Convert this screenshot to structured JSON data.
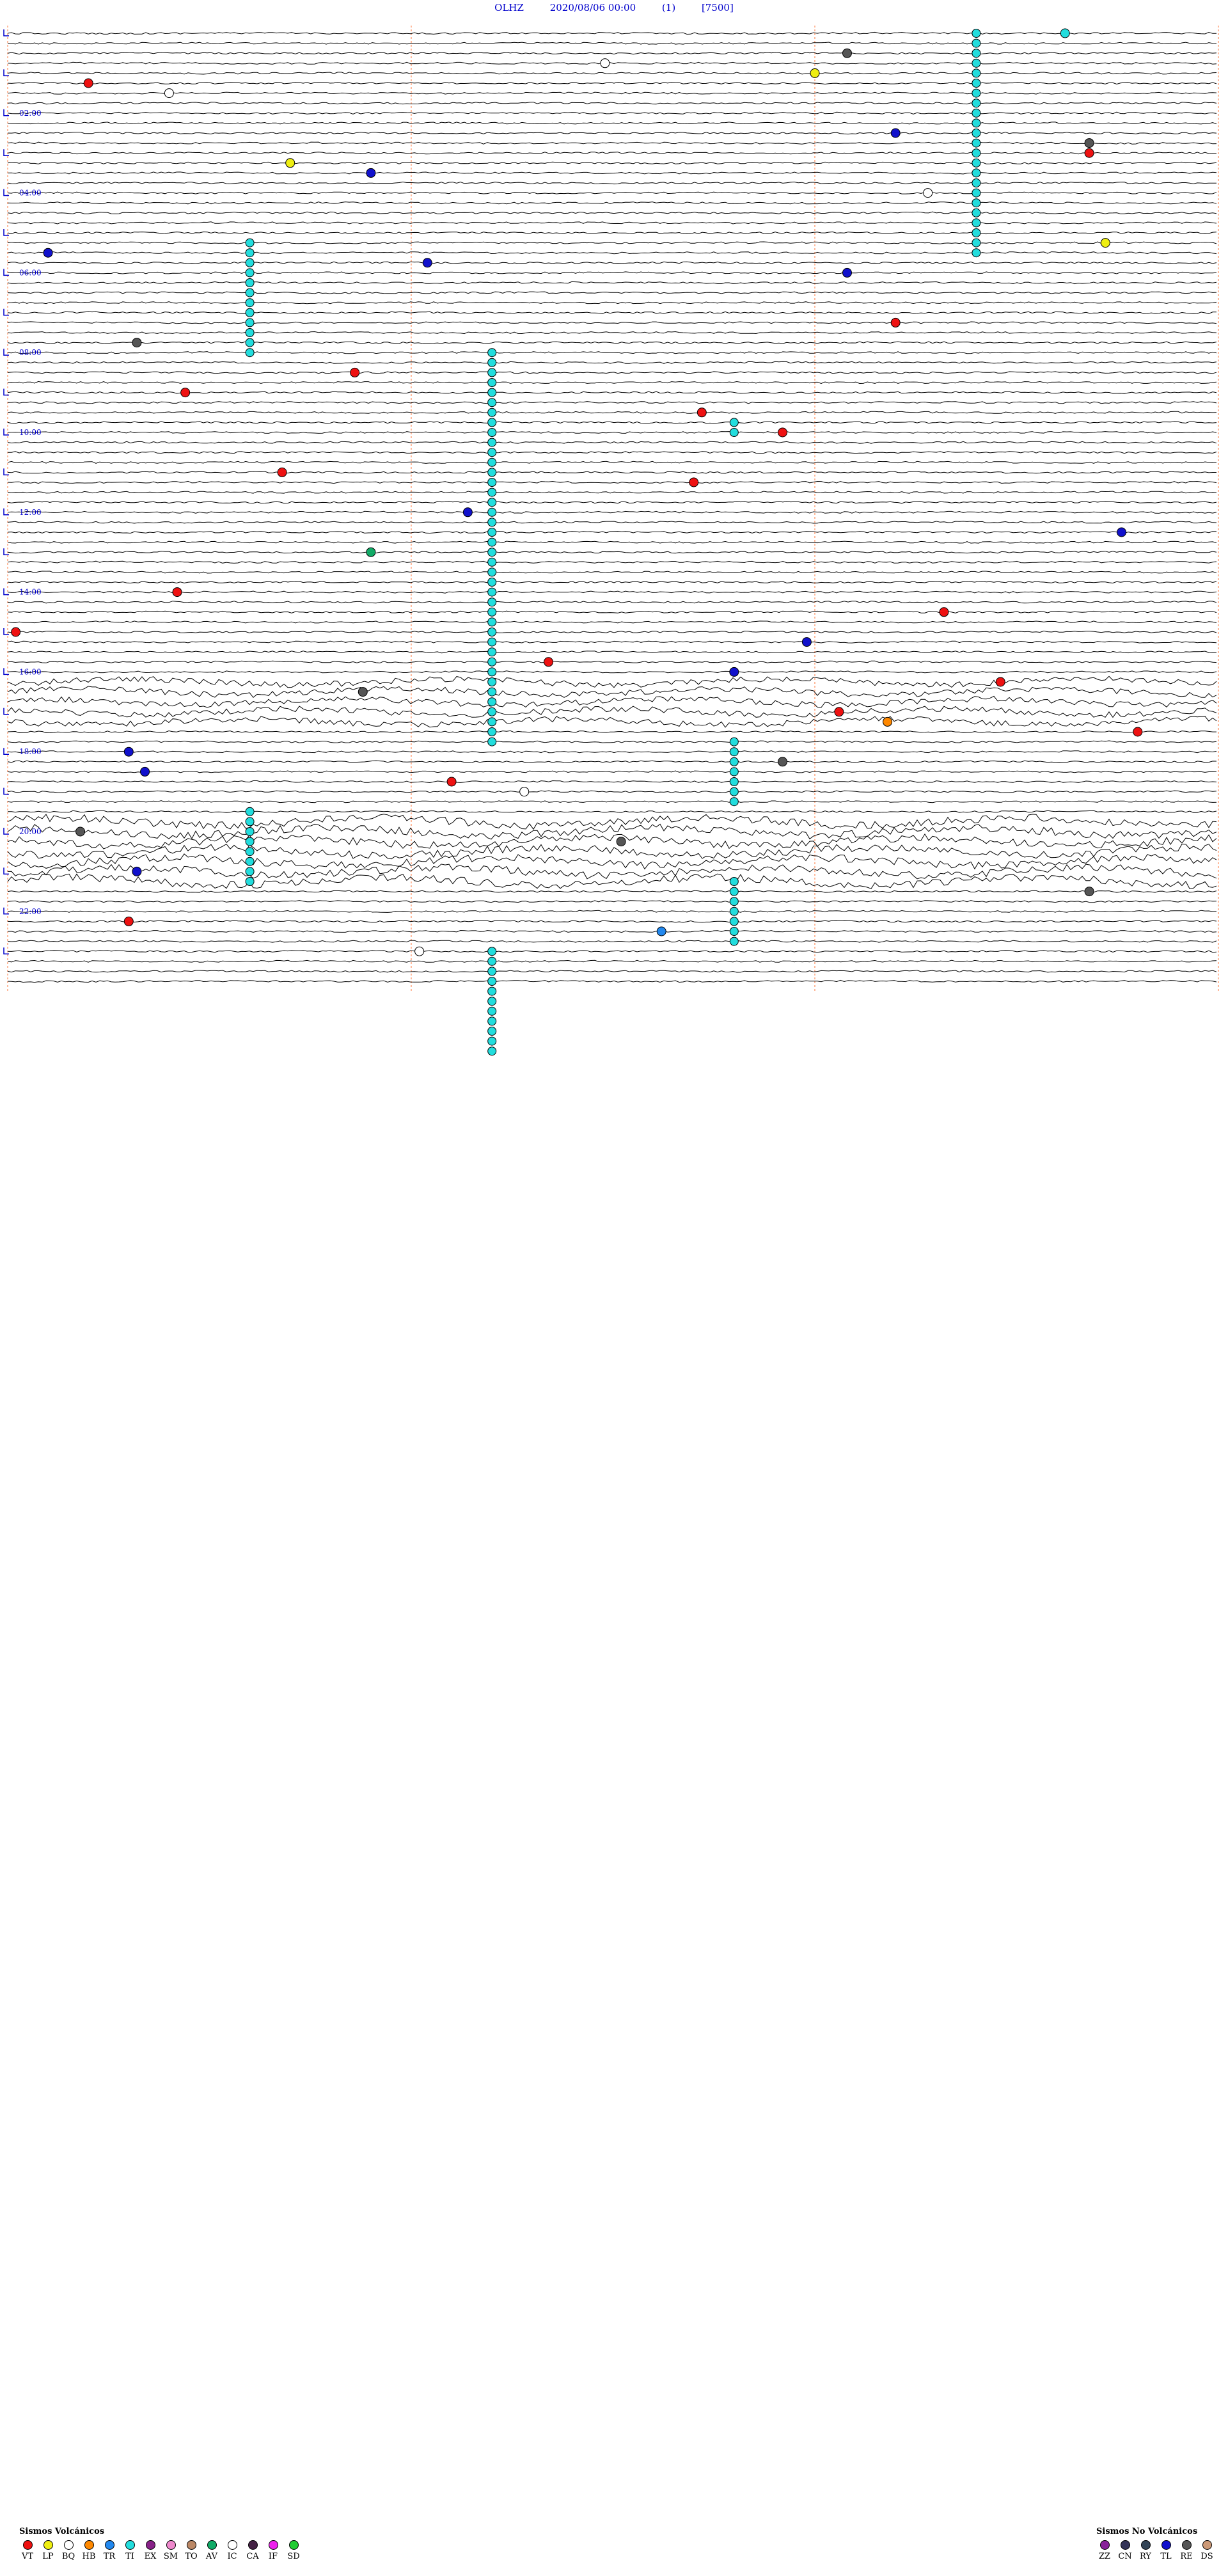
{
  "header": {
    "station": "OLHZ",
    "datetime": "2020/08/06 00:00",
    "page": "(1)",
    "scale": "[7500]"
  },
  "colors": {
    "trace": "#000000",
    "hour_mark": "#0000cc",
    "minute_grid": "#ff8c5a",
    "VT": "#ee1111",
    "LP": "#eeee11",
    "BQ": "#ffffff",
    "HB": "#ff8800",
    "TR": "#2288ee",
    "TI": "#22dddd",
    "EX": "#882288",
    "SM": "#ee88cc",
    "TO": "#bb8866",
    "AV": "#11aa66",
    "IC": "#ffffff",
    "CA": "#442244",
    "IF": "#ee22ee",
    "SD": "#22cc33",
    "ZZ": "#882299",
    "CN": "#333355",
    "RY": "#334455",
    "TL": "#1111cc",
    "RE": "#555555",
    "DS": "#cc9977"
  },
  "chart_data": {
    "type": "helicorder",
    "traces_per_hour": 4,
    "minutes_per_trace": 15,
    "hour_labels": [
      "02:00",
      "04:00",
      "06:00",
      "08:00",
      "10:00",
      "12:00",
      "14:00",
      "16:00",
      "18:00",
      "20:00",
      "22:00"
    ],
    "events": [
      {
        "hour": 0.0,
        "minute": 13.1,
        "type": "TI"
      },
      {
        "hour": 0.5,
        "minute": 10.4,
        "type": "RE"
      },
      {
        "hour": 0.75,
        "minute": 7.4,
        "type": "BQ"
      },
      {
        "hour": 1.0,
        "minute": 10.0,
        "type": "LP"
      },
      {
        "hour": 1.25,
        "minute": 1.0,
        "type": "VT"
      },
      {
        "hour": 1.5,
        "minute": 2.0,
        "type": "BQ"
      },
      {
        "hour": 2.5,
        "minute": 11.0,
        "type": "TL"
      },
      {
        "hour": 2.75,
        "minute": 13.4,
        "type": "RE"
      },
      {
        "hour": 3.0,
        "minute": 13.4,
        "type": "VT"
      },
      {
        "hour": 3.25,
        "minute": 3.5,
        "type": "LP"
      },
      {
        "hour": 3.5,
        "minute": 4.5,
        "type": "TL"
      },
      {
        "hour": 4.0,
        "minute": 11.4,
        "type": "BQ"
      },
      {
        "hour": 5.25,
        "minute": 13.6,
        "type": "LP"
      },
      {
        "hour": 5.5,
        "minute": 0.5,
        "type": "TL"
      },
      {
        "hour": 5.75,
        "minute": 5.2,
        "type": "TL"
      },
      {
        "hour": 6.0,
        "minute": 10.4,
        "type": "TL"
      },
      {
        "hour": 7.25,
        "minute": 11.0,
        "type": "VT"
      },
      {
        "hour": 7.75,
        "minute": 1.6,
        "type": "RE"
      },
      {
        "hour": 8.5,
        "minute": 4.3,
        "type": "VT"
      },
      {
        "hour": 9.0,
        "minute": 2.2,
        "type": "VT"
      },
      {
        "hour": 9.5,
        "minute": 8.6,
        "type": "VT"
      },
      {
        "hour": 10.0,
        "minute": 9.6,
        "type": "VT"
      },
      {
        "hour": 11.0,
        "minute": 3.4,
        "type": "VT"
      },
      {
        "hour": 11.25,
        "minute": 8.5,
        "type": "VT"
      },
      {
        "hour": 12.0,
        "minute": 5.7,
        "type": "TL"
      },
      {
        "hour": 12.5,
        "minute": 13.8,
        "type": "TL"
      },
      {
        "hour": 13.0,
        "minute": 4.5,
        "type": "AV"
      },
      {
        "hour": 14.0,
        "minute": 2.1,
        "type": "VT"
      },
      {
        "hour": 14.5,
        "minute": 11.6,
        "type": "VT"
      },
      {
        "hour": 15.0,
        "minute": 0.1,
        "type": "VT"
      },
      {
        "hour": 15.25,
        "minute": 9.9,
        "type": "TL"
      },
      {
        "hour": 15.75,
        "minute": 6.7,
        "type": "VT"
      },
      {
        "hour": 16.0,
        "minute": 9.0,
        "type": "TL"
      },
      {
        "hour": 16.25,
        "minute": 12.3,
        "type": "VT"
      },
      {
        "hour": 16.5,
        "minute": 4.4,
        "type": "RE"
      },
      {
        "hour": 17.0,
        "minute": 10.3,
        "type": "VT"
      },
      {
        "hour": 17.25,
        "minute": 10.9,
        "type": "HB"
      },
      {
        "hour": 17.5,
        "minute": 14.0,
        "type": "VT"
      },
      {
        "hour": 18.0,
        "minute": 1.5,
        "type": "TL"
      },
      {
        "hour": 18.25,
        "minute": 9.6,
        "type": "RE"
      },
      {
        "hour": 18.5,
        "minute": 1.7,
        "type": "TL"
      },
      {
        "hour": 18.75,
        "minute": 5.5,
        "type": "VT"
      },
      {
        "hour": 19.0,
        "minute": 6.4,
        "type": "BQ"
      },
      {
        "hour": 20.0,
        "minute": 0.9,
        "type": "RE"
      },
      {
        "hour": 20.25,
        "minute": 7.6,
        "type": "RE"
      },
      {
        "hour": 21.0,
        "minute": 1.6,
        "type": "TL"
      },
      {
        "hour": 21.5,
        "minute": 13.4,
        "type": "RE"
      },
      {
        "hour": 22.25,
        "minute": 1.5,
        "type": "VT"
      },
      {
        "hour": 22.5,
        "minute": 8.1,
        "type": "TR"
      },
      {
        "hour": 23.0,
        "minute": 5.1,
        "type": "BQ"
      }
    ],
    "ti_columns": [
      {
        "minute": 12.0,
        "hour_start": 0.0,
        "hour_end": 5.5
      },
      {
        "minute": 3.0,
        "hour_start": 5.25,
        "hour_end": 8.0
      },
      {
        "minute": 6.0,
        "hour_start": 8.0,
        "hour_end": 17.75
      },
      {
        "minute": 9.0,
        "hour_start": 9.75,
        "hour_end": 10.0
      },
      {
        "minute": 9.0,
        "hour_start": 17.75,
        "hour_end": 19.25
      },
      {
        "minute": 3.0,
        "hour_start": 19.5,
        "hour_end": 21.25
      },
      {
        "minute": 9.0,
        "hour_start": 21.25,
        "hour_end": 22.75
      },
      {
        "minute": 6.0,
        "hour_start": 23.0,
        "hour_end": 25.5
      }
    ]
  },
  "legend": {
    "volcanic_title": "Sismos Volcánicos",
    "volcanic_codes": [
      "VT",
      "LP",
      "BQ",
      "HB",
      "TR",
      "TI",
      "EX",
      "SM",
      "TO",
      "AV",
      "IC",
      "CA",
      "IF",
      "SD"
    ],
    "nonvolcanic_title": "Sismos No Volcánicos",
    "nonvolcanic_codes": [
      "ZZ",
      "CN",
      "RY",
      "TL",
      "RE",
      "DS"
    ]
  }
}
